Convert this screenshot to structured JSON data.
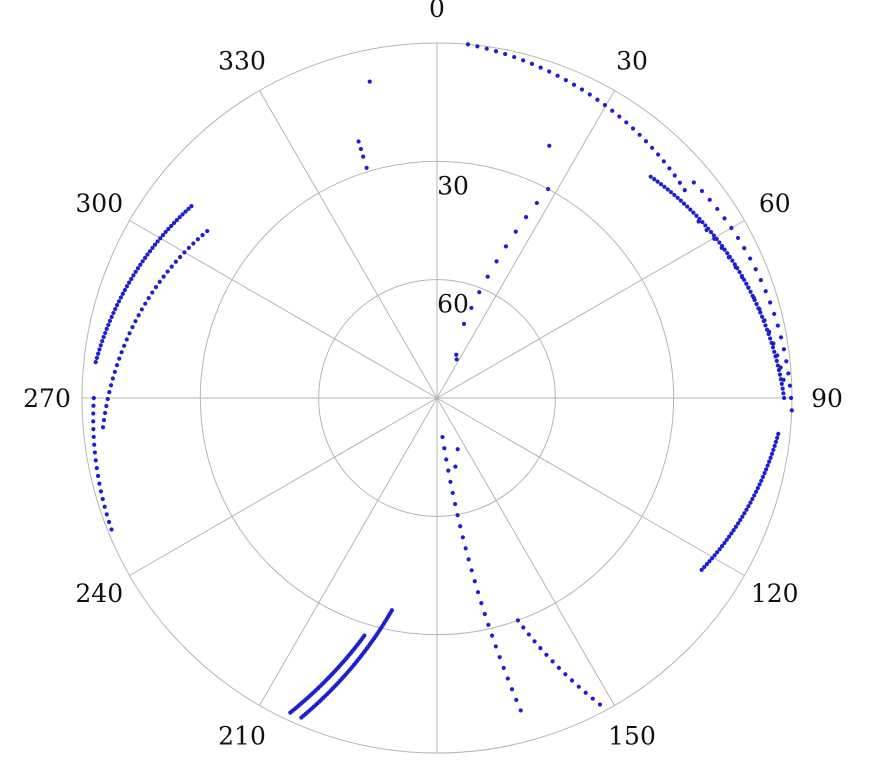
{
  "chart_data": {
    "type": "scatter",
    "projection": "polar",
    "title": "",
    "angle_direction": "clockwise",
    "angle_zero": "top",
    "angle_range": [
      0,
      360
    ],
    "radius_axis": "elevation",
    "radius_range": [
      90,
      0
    ],
    "angular_ticks": [
      {
        "value": 0,
        "label": "0"
      },
      {
        "value": 30,
        "label": "30"
      },
      {
        "value": 60,
        "label": "60"
      },
      {
        "value": 90,
        "label": "90"
      },
      {
        "value": 120,
        "label": "120"
      },
      {
        "value": 150,
        "label": "150"
      },
      {
        "value": 180,
        "label": ""
      },
      {
        "value": 210,
        "label": "210"
      },
      {
        "value": 240,
        "label": "240"
      },
      {
        "value": 270,
        "label": "270"
      },
      {
        "value": 300,
        "label": "300"
      },
      {
        "value": 330,
        "label": "330"
      }
    ],
    "radial_ticks": [
      {
        "value": 0,
        "label": ""
      },
      {
        "value": 30,
        "label": "30"
      },
      {
        "value": 60,
        "label": "60"
      }
    ],
    "grid": true,
    "marker_color": "#1f1fd0",
    "grid_color": "#b5b5b5",
    "tracks": [
      {
        "az_start": 5,
        "az_end": 50,
        "el_start": 0,
        "el_end": 8,
        "points": 30
      },
      {
        "az_start": 44,
        "az_end": 90,
        "el_start": 12,
        "el_end": 2,
        "points": 60
      },
      {
        "az_start": 50,
        "az_end": 92,
        "el_start": 5,
        "el_end": 0,
        "points": 22
      },
      {
        "az_start": 56,
        "az_end": 87,
        "el_start": 10,
        "el_end": 2,
        "points": 16
      },
      {
        "az_start": 96,
        "az_end": 123,
        "el_start": 3,
        "el_end": 10,
        "points": 40
      },
      {
        "az_start": 192,
        "az_end": 203,
        "el_start": 35,
        "el_end": 2,
        "points": 55
      },
      {
        "az_start": 197,
        "az_end": 205,
        "el_start": 27,
        "el_end": 2,
        "points": 45
      },
      {
        "az_start": 276,
        "az_end": 308,
        "el_start": 3,
        "el_end": 11,
        "points": 45
      },
      {
        "az_start": 265,
        "az_end": 306,
        "el_start": 5,
        "el_end": 18,
        "points": 35
      },
      {
        "az_start": 248,
        "az_end": 270,
        "el_start": 1,
        "el_end": 3,
        "points": 18
      },
      {
        "az_start": 172,
        "az_end": 165,
        "el_start": 80,
        "el_end": 8,
        "points": 26
      },
      {
        "az_start": 20,
        "az_end": 28,
        "el_start": 70,
        "el_end": 30,
        "points": 10
      },
      {
        "az_start": 160,
        "az_end": 152,
        "el_start": 30,
        "el_end": 2,
        "points": 14
      }
    ],
    "extra_points": [
      {
        "az": 348,
        "el": 8
      },
      {
        "az": 343,
        "el": 22
      },
      {
        "az": 343,
        "el": 24
      },
      {
        "az": 343,
        "el": 26
      },
      {
        "az": 343,
        "el": 29
      },
      {
        "az": 24,
        "el": 78
      },
      {
        "az": 27,
        "el": 79
      },
      {
        "az": 24,
        "el": 20
      },
      {
        "az": 158,
        "el": 76
      },
      {
        "az": 165,
        "el": 72
      }
    ]
  }
}
